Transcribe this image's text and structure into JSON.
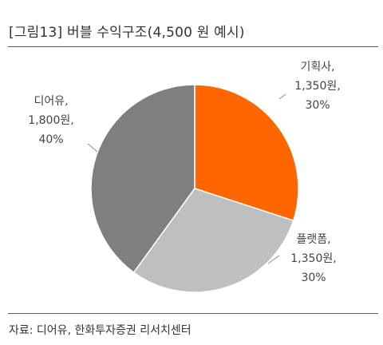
{
  "header": {
    "title": "[그림13]  버블 수익구조(4,500 원 예시)"
  },
  "footer": {
    "source": "자료: 디어유, 한화투자증권 리서치센터"
  },
  "chart_data": {
    "type": "pie",
    "title": "[그림13]  버블 수익구조(4,500 원 예시)",
    "slices": [
      {
        "name": "기획사",
        "value": 1350,
        "percent": 30,
        "color": "#ff6600",
        "label": [
          "기획사,",
          "1,350원,",
          "30%"
        ]
      },
      {
        "name": "플랫폼",
        "value": 1350,
        "percent": 30,
        "color": "#bfbfbf",
        "label": [
          "플랫폼,",
          "1,350원,",
          "30%"
        ]
      },
      {
        "name": "디어유",
        "value": 1800,
        "percent": 40,
        "color": "#7f7f7f",
        "label": [
          "디어유,",
          "1,800원,",
          "40%"
        ]
      }
    ],
    "unit": "원"
  }
}
